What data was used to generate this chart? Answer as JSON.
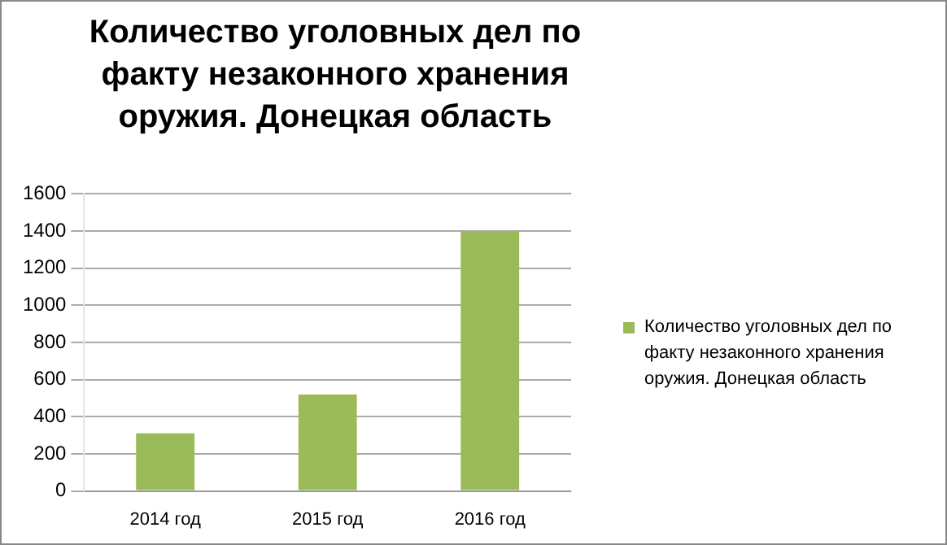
{
  "chart_data": {
    "type": "bar",
    "title": "Количество уголовных дел по факту незаконного хранения оружия. Донецкая область",
    "categories": [
      "2014 год",
      "2015 год",
      "2016 год"
    ],
    "series": [
      {
        "name": "Количество уголовных дел по факту незаконного хранения оружия. Донецкая  область",
        "color": "#9bbb59",
        "values": [
          310,
          520,
          1400
        ]
      }
    ],
    "ylim": [
      0,
      1600
    ],
    "yticks": [
      0,
      200,
      400,
      600,
      800,
      1000,
      1200,
      1400,
      1600
    ],
    "grid": "y",
    "legend": "right"
  }
}
